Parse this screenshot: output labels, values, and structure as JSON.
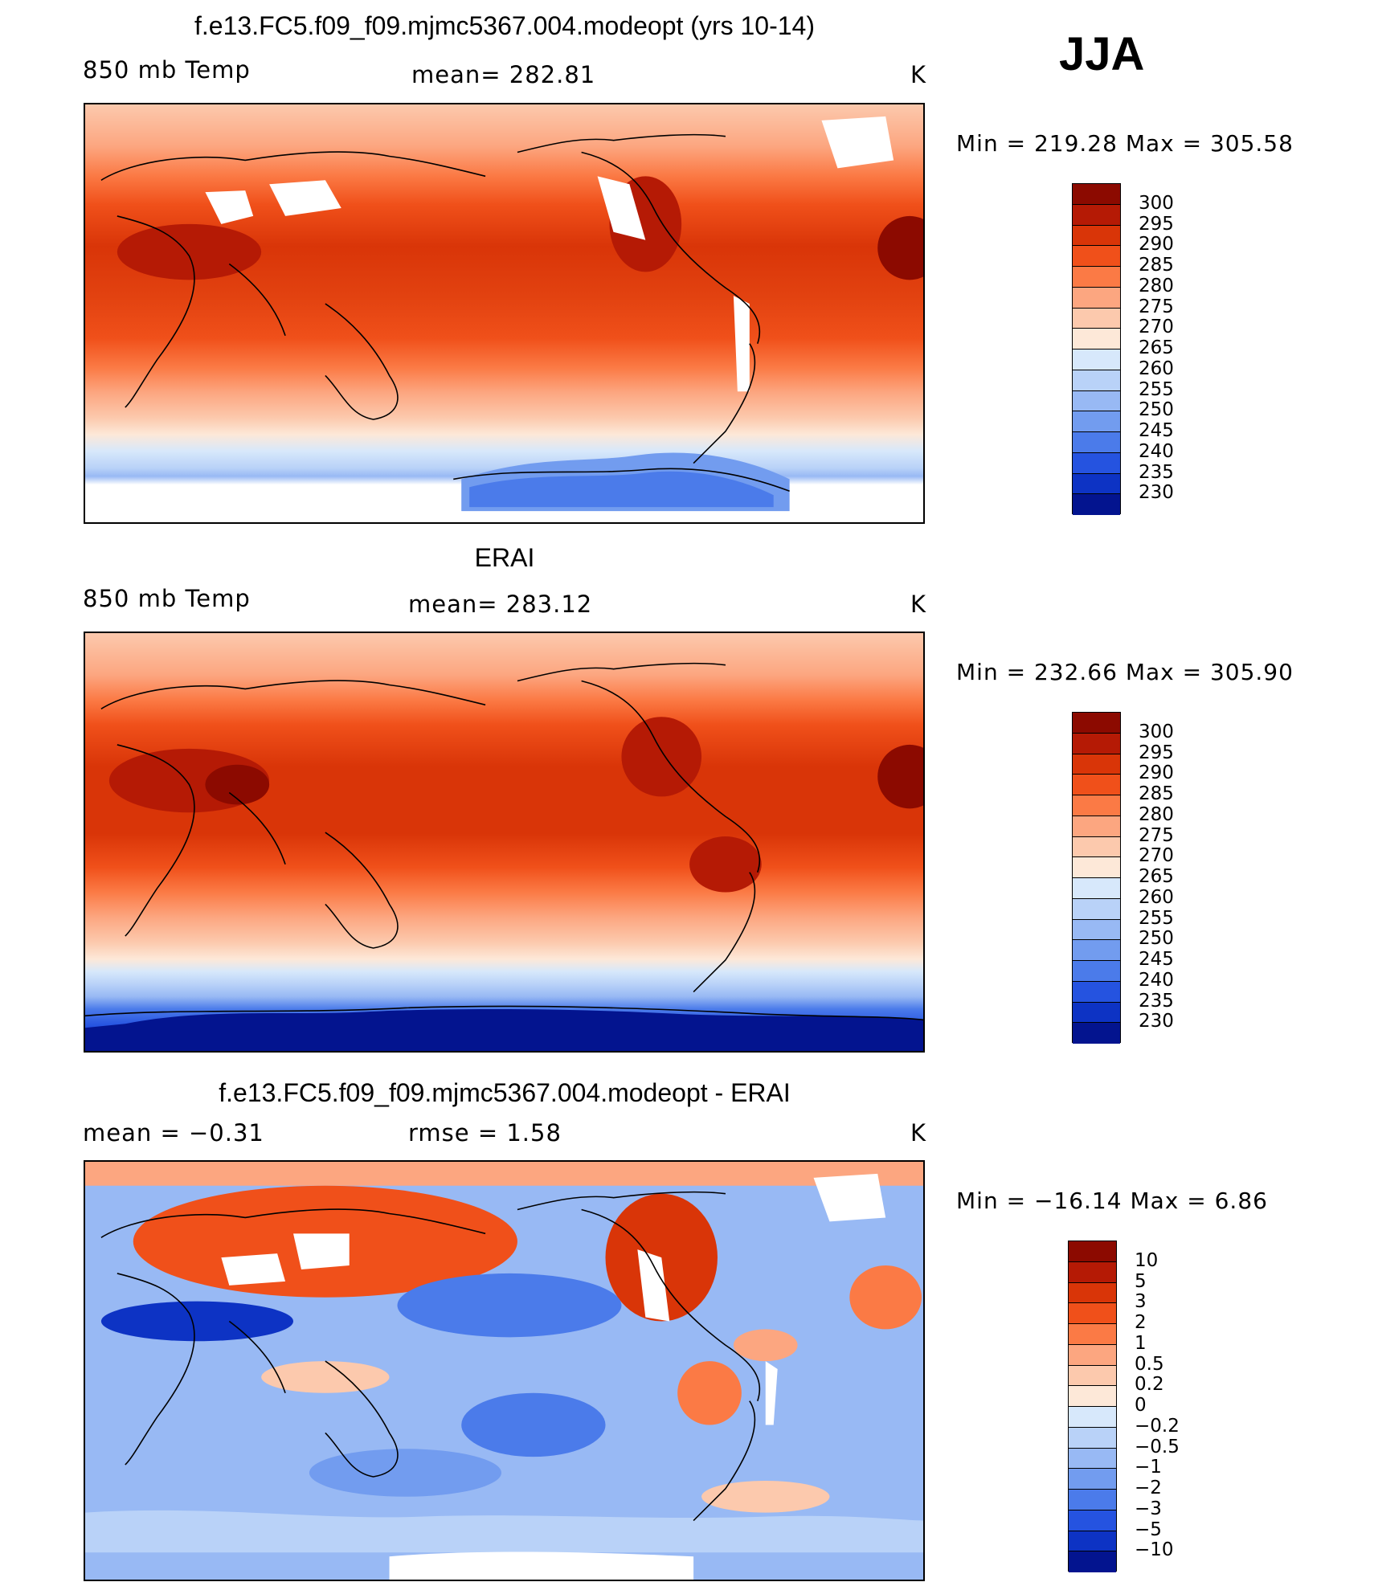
{
  "season": "JJA",
  "panels": [
    {
      "id": "model",
      "title": "f.e13.FC5.f09_f09.mjmc5367.004.modeopt (yrs 10-14)",
      "left_label": "850 mb Temp",
      "center_label": "mean= 282.81",
      "units": "K",
      "minmax": "Min = 219.28 Max = 305.58",
      "colorbar": {
        "labels": [
          "300",
          "295",
          "290",
          "285",
          "280",
          "275",
          "270",
          "265",
          "260",
          "255",
          "250",
          "245",
          "240",
          "235",
          "230"
        ],
        "colors": [
          "#8c0a00",
          "#b51a05",
          "#d93508",
          "#f0501a",
          "#fb7a45",
          "#fca680",
          "#fcc9ad",
          "#fde8d8",
          "#d7e8fb",
          "#b9d2f8",
          "#98b9f4",
          "#729cef",
          "#4b7bea",
          "#2553e0",
          "#0d33c4",
          "#03148f"
        ]
      }
    },
    {
      "id": "obs",
      "title": "ERAI",
      "left_label": "850 mb Temp",
      "center_label": "mean= 283.12",
      "units": "K",
      "minmax": "Min = 232.66 Max = 305.90",
      "colorbar": {
        "labels": [
          "300",
          "295",
          "290",
          "285",
          "280",
          "275",
          "270",
          "265",
          "260",
          "255",
          "250",
          "245",
          "240",
          "235",
          "230"
        ],
        "colors": [
          "#8c0a00",
          "#b51a05",
          "#d93508",
          "#f0501a",
          "#fb7a45",
          "#fca680",
          "#fcc9ad",
          "#fde8d8",
          "#d7e8fb",
          "#b9d2f8",
          "#98b9f4",
          "#729cef",
          "#4b7bea",
          "#2553e0",
          "#0d33c4",
          "#03148f"
        ]
      }
    },
    {
      "id": "diff",
      "title": "f.e13.FC5.f09_f09.mjmc5367.004.modeopt - ERAI",
      "left_label": "mean =   −0.31",
      "center_label": "rmse =    1.58",
      "units": "K",
      "minmax": "Min = −16.14 Max =    6.86",
      "colorbar": {
        "labels": [
          "10",
          "5",
          "3",
          "2",
          "1",
          "0.5",
          "0.2",
          "0",
          "−0.2",
          "−0.5",
          "−1",
          "−2",
          "−3",
          "−5",
          "−10"
        ],
        "colors": [
          "#8c0a00",
          "#b51a05",
          "#d93508",
          "#f0501a",
          "#fb7a45",
          "#fca680",
          "#fcc9ad",
          "#fde8d8",
          "#d7e8fb",
          "#b9d2f8",
          "#98b9f4",
          "#729cef",
          "#4b7bea",
          "#2553e0",
          "#0d33c4",
          "#03148f"
        ]
      }
    }
  ]
}
